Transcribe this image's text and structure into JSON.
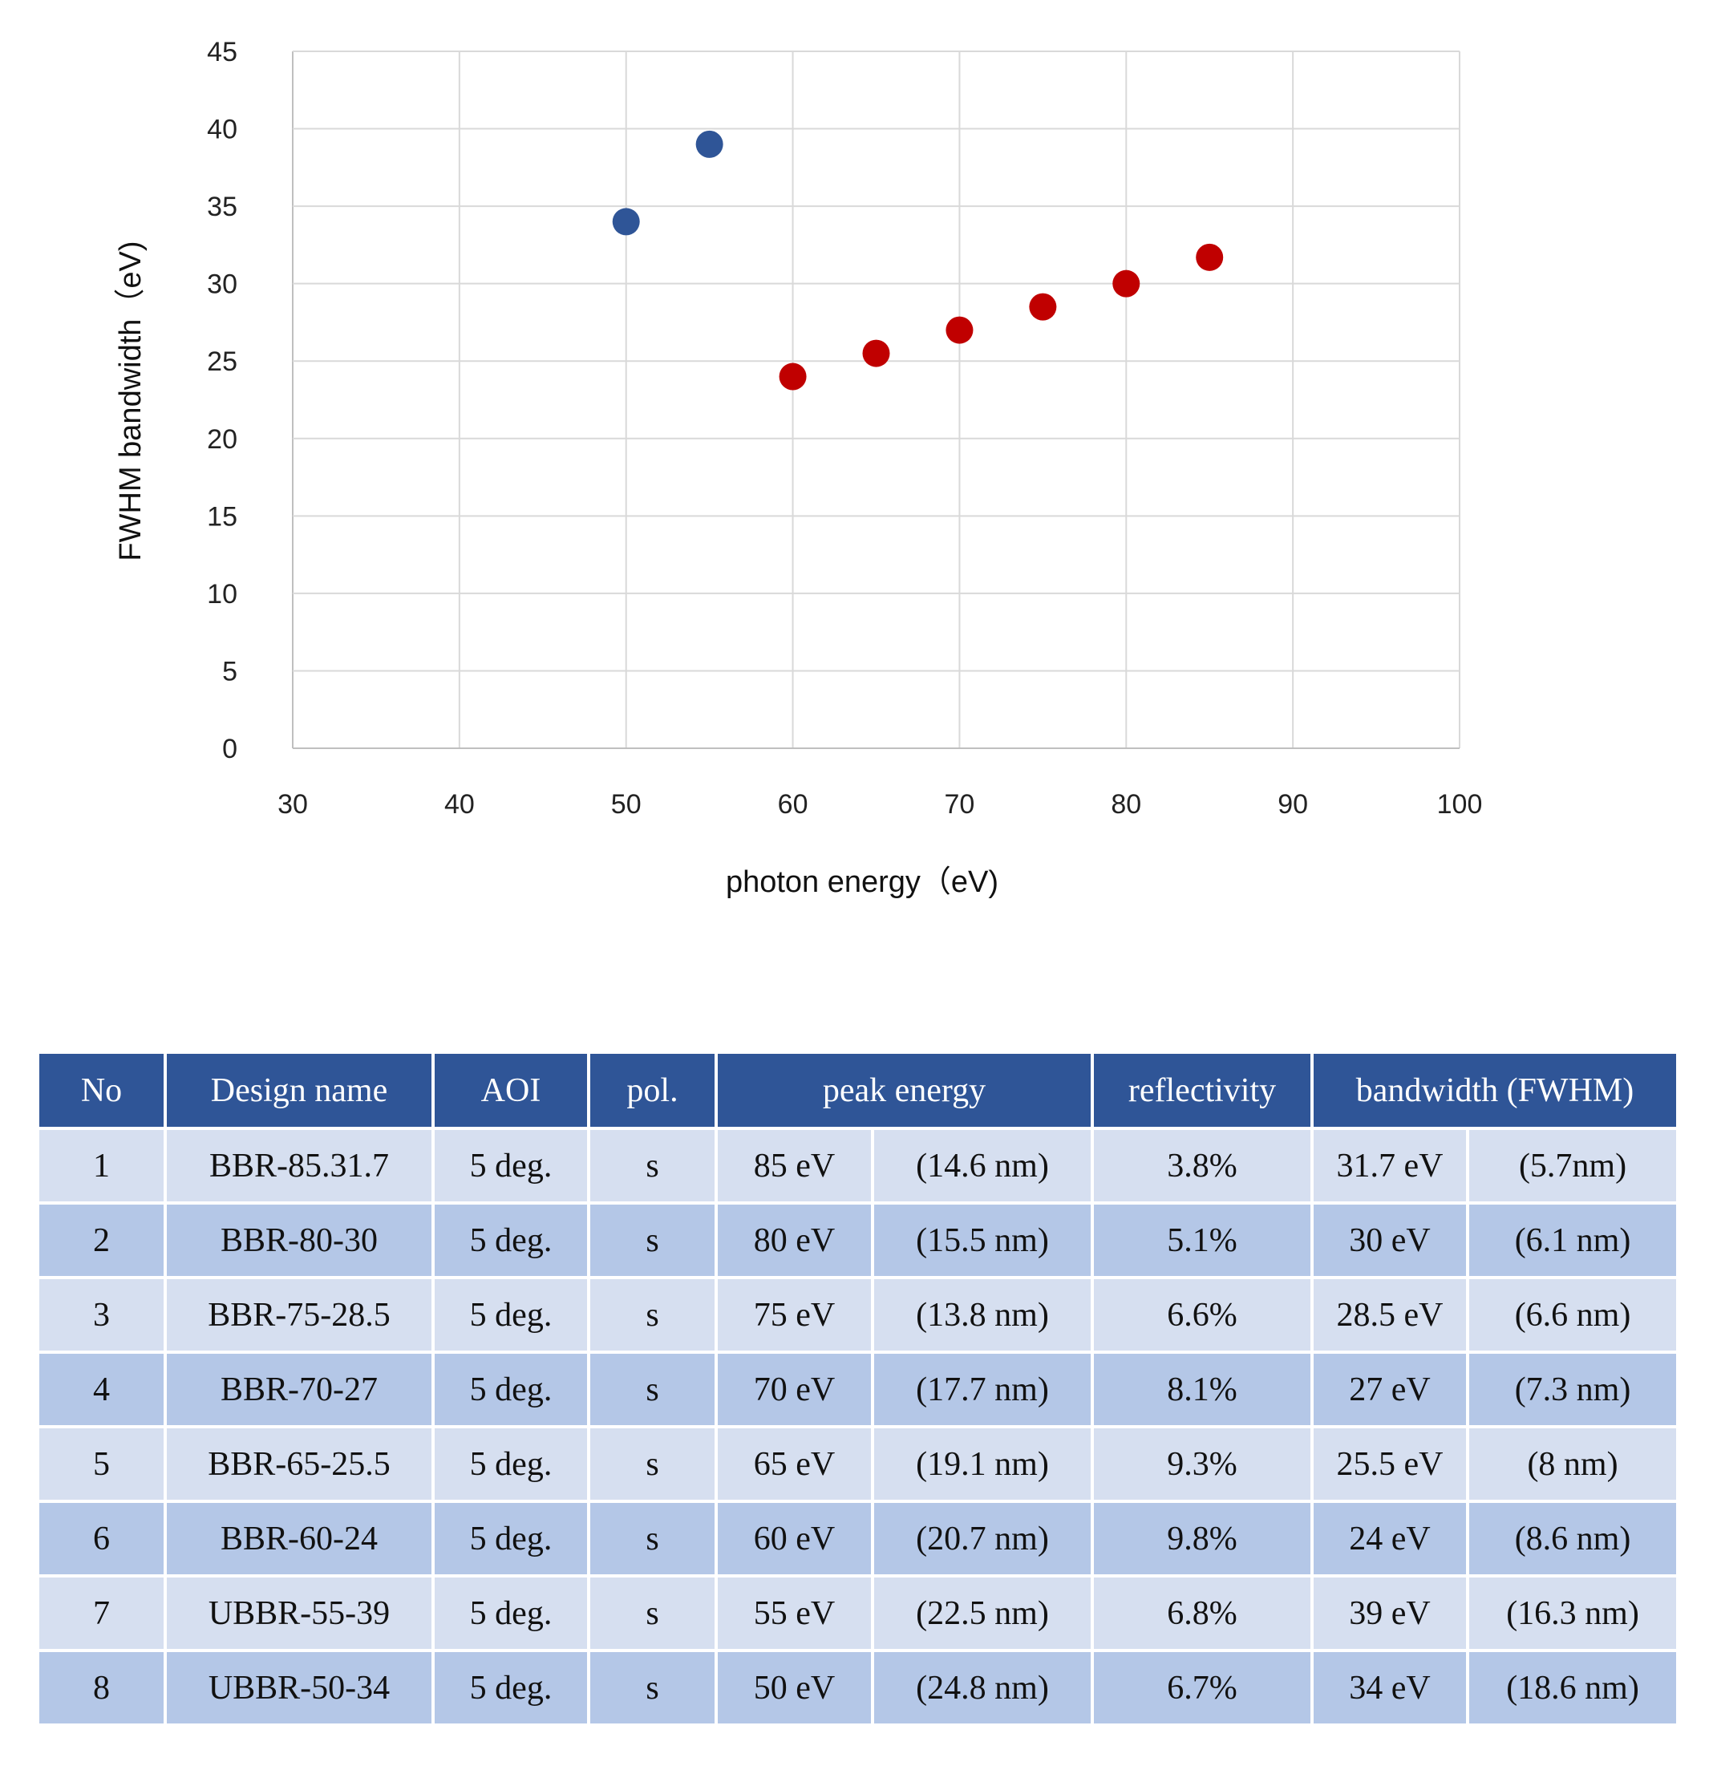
{
  "chart_data": {
    "type": "scatter",
    "xlabel": "photon energy（eV)",
    "ylabel": "FWHM bandwidth（eV)",
    "xlim": [
      30,
      100
    ],
    "ylim": [
      0,
      45
    ],
    "xticks": [
      30,
      40,
      50,
      60,
      70,
      80,
      90,
      100
    ],
    "yticks": [
      0,
      5,
      10,
      15,
      20,
      25,
      30,
      35,
      40,
      45
    ],
    "grid": true,
    "series": [
      {
        "color": "#2f5597",
        "points": [
          [
            50,
            34
          ],
          [
            55,
            39
          ]
        ]
      },
      {
        "color": "#c00000",
        "points": [
          [
            60,
            24
          ],
          [
            65,
            25.5
          ],
          [
            70,
            27
          ],
          [
            75,
            28.5
          ],
          [
            80,
            30
          ],
          [
            85,
            31.7
          ]
        ]
      }
    ]
  },
  "table": {
    "headers": [
      "No",
      "Design name",
      "AOI",
      "pol.",
      "peak energy",
      "reflectivity",
      "bandwidth (FWHM)"
    ],
    "rows": [
      [
        "1",
        "BBR-85.31.7",
        "5 deg.",
        "s",
        "85 eV",
        "(14.6 nm)",
        "3.8%",
        "31.7 eV",
        "(5.7nm)"
      ],
      [
        "2",
        "BBR-80-30",
        "5 deg.",
        "s",
        "80 eV",
        "(15.5 nm)",
        "5.1%",
        "30 eV",
        "(6.1 nm)"
      ],
      [
        "3",
        "BBR-75-28.5",
        "5 deg.",
        "s",
        "75 eV",
        "(13.8 nm)",
        "6.6%",
        "28.5 eV",
        "(6.6 nm)"
      ],
      [
        "4",
        "BBR-70-27",
        "5 deg.",
        "s",
        "70 eV",
        "(17.7 nm)",
        "8.1%",
        "27 eV",
        "(7.3 nm)"
      ],
      [
        "5",
        "BBR-65-25.5",
        "5 deg.",
        "s",
        "65 eV",
        "(19.1 nm)",
        "9.3%",
        "25.5 eV",
        "(8 nm)"
      ],
      [
        "6",
        "BBR-60-24",
        "5 deg.",
        "s",
        "60 eV",
        "(20.7 nm)",
        "9.8%",
        "24 eV",
        "(8.6 nm)"
      ],
      [
        "7",
        "UBBR-55-39",
        "5 deg.",
        "s",
        "55 eV",
        "(22.5 nm)",
        "6.8%",
        "39 eV",
        "(16.3 nm)"
      ],
      [
        "8",
        "UBBR-50-34",
        "5 deg.",
        "s",
        "50 eV",
        "(24.8 nm)",
        "6.7%",
        "34 eV",
        "(18.6 nm)"
      ]
    ]
  }
}
